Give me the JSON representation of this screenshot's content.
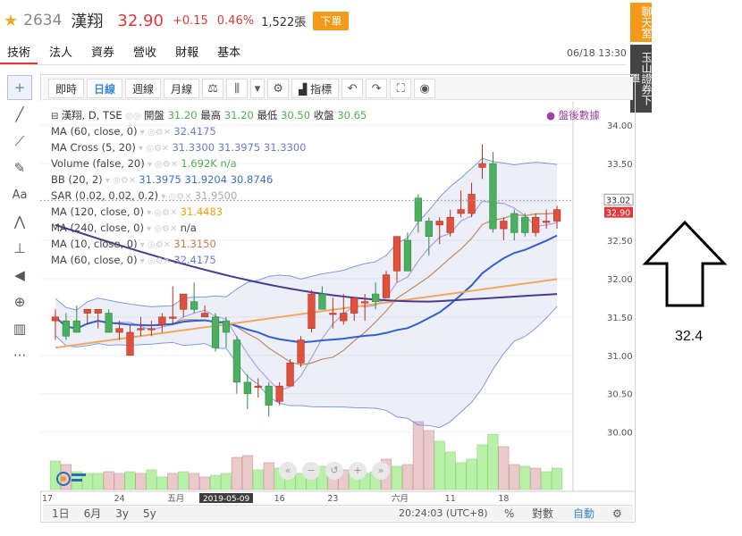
{
  "header": {
    "star_icon": "star-icon",
    "code": "2634",
    "name": "漢翔",
    "price": "32.90",
    "change": "+0.15",
    "change_pct": "0.46%",
    "volume": "1,522張",
    "order_button": "下單"
  },
  "side_buttons": {
    "chat": "聊天室",
    "trade": "玉山證券下單"
  },
  "tabs": [
    {
      "label": "技術",
      "active": true
    },
    {
      "label": "法人",
      "active": false
    },
    {
      "label": "資券",
      "active": false
    },
    {
      "label": "營收",
      "active": false
    },
    {
      "label": "財報",
      "active": false
    },
    {
      "label": "基本",
      "active": false
    }
  ],
  "datetime": "06/18 13:30",
  "toolbar": {
    "intraday": "即時",
    "daily": "日線",
    "weekly": "週線",
    "monthly": "月線",
    "indicators": "指標"
  },
  "legend": {
    "title": "漢翔, D, TSE",
    "open_label": "開盤",
    "open": "31.20",
    "high_label": "最高",
    "high": "31.20",
    "low_label": "最低",
    "low": "30.50",
    "close_label": "收盤",
    "close": "30.65",
    "after_hours": "盤後數據",
    "rows": [
      {
        "label": "MA (60, close, 0)",
        "value": "32.4175",
        "color": "#6c7ac9"
      },
      {
        "label": "MA Cross (5, 20)",
        "value": "31.3300  31.3975  31.3300",
        "color": "#6c7ac9"
      },
      {
        "label": "Volume (false, 20)",
        "value": "1.692K  n/a",
        "color": "#4caf50"
      },
      {
        "label": "BB (20, 2)",
        "value": "31.3975  31.9204  30.8746",
        "color": "#3a6fc8"
      },
      {
        "label": "SAR (0.02, 0.02, 0.2)",
        "value": "31.9500",
        "color": "#aaa"
      },
      {
        "label": "MA (120, close, 0)",
        "value": "31.4483",
        "color": "#f0a000"
      },
      {
        "label": "MA (240, close, 0)",
        "value": "n/a",
        "color": "#444"
      },
      {
        "label": "MA (10, close, 0)",
        "value": "31.3150",
        "color": "#c07a50"
      },
      {
        "label": "MA (60, close, 0)",
        "value": "32.4175",
        "color": "#6c7ac9"
      }
    ]
  },
  "price_axis": [
    "34.00",
    "33.50",
    "33.00",
    "32.50",
    "32.00",
    "31.50",
    "31.00",
    "30.50",
    "30.00"
  ],
  "price_tags": {
    "upper": "33.02",
    "current": "32.90"
  },
  "x_axis": [
    "17",
    "24",
    "五月",
    "2019-05-09",
    "16",
    "23",
    "六月",
    "11",
    "18"
  ],
  "bottom": {
    "ranges": [
      "1日",
      "6月",
      "3y",
      "5y"
    ],
    "clock": "20:24:03 (UTC+8)",
    "percent": "%",
    "log": "對數",
    "auto": "自動"
  },
  "annotation": {
    "price": "32.4"
  },
  "chart_data": {
    "type": "candlestick",
    "ylim": [
      29.6,
      34.2
    ],
    "candles": [
      {
        "o": 31.45,
        "h": 31.6,
        "l": 31.2,
        "c": 31.5
      },
      {
        "o": 31.45,
        "h": 31.55,
        "l": 31.2,
        "c": 31.25
      },
      {
        "o": 31.45,
        "h": 31.65,
        "l": 31.3,
        "c": 31.3
      },
      {
        "o": 31.55,
        "h": 31.6,
        "l": 31.4,
        "c": 31.6
      },
      {
        "o": 31.55,
        "h": 31.6,
        "l": 31.35,
        "c": 31.6
      },
      {
        "o": 31.55,
        "h": 31.6,
        "l": 31.3,
        "c": 31.3
      },
      {
        "o": 31.3,
        "h": 31.45,
        "l": 31.2,
        "c": 31.35
      },
      {
        "o": 31.0,
        "h": 31.4,
        "l": 31.0,
        "c": 31.3
      },
      {
        "o": 31.35,
        "h": 31.5,
        "l": 31.25,
        "c": 31.35
      },
      {
        "o": 31.35,
        "h": 31.45,
        "l": 31.25,
        "c": 31.35
      },
      {
        "o": 31.4,
        "h": 31.55,
        "l": 31.3,
        "c": 31.5
      },
      {
        "o": 31.5,
        "h": 31.9,
        "l": 31.4,
        "c": 31.5
      },
      {
        "o": 31.6,
        "h": 31.8,
        "l": 31.5,
        "c": 31.8
      },
      {
        "o": 31.7,
        "h": 31.95,
        "l": 31.55,
        "c": 31.6
      },
      {
        "o": 31.5,
        "h": 31.65,
        "l": 31.5,
        "c": 31.55
      },
      {
        "o": 31.5,
        "h": 31.55,
        "l": 31.05,
        "c": 31.1
      },
      {
        "o": 31.45,
        "h": 31.5,
        "l": 31.1,
        "c": 31.3
      },
      {
        "o": 31.2,
        "h": 31.25,
        "l": 30.5,
        "c": 30.65
      },
      {
        "o": 30.65,
        "h": 30.75,
        "l": 30.3,
        "c": 30.5
      },
      {
        "o": 30.6,
        "h": 30.7,
        "l": 30.45,
        "c": 30.6
      },
      {
        "o": 30.6,
        "h": 30.65,
        "l": 30.2,
        "c": 30.35
      },
      {
        "o": 30.4,
        "h": 30.65,
        "l": 30.35,
        "c": 30.6
      },
      {
        "o": 30.6,
        "h": 30.95,
        "l": 30.6,
        "c": 30.9
      },
      {
        "o": 30.9,
        "h": 31.25,
        "l": 30.85,
        "c": 31.2
      },
      {
        "o": 31.35,
        "h": 31.85,
        "l": 31.3,
        "c": 31.8
      },
      {
        "o": 31.8,
        "h": 31.9,
        "l": 31.6,
        "c": 31.6
      },
      {
        "o": 31.55,
        "h": 31.75,
        "l": 31.35,
        "c": 31.55
      },
      {
        "o": 31.45,
        "h": 31.8,
        "l": 31.4,
        "c": 31.55
      },
      {
        "o": 31.55,
        "h": 31.75,
        "l": 31.45,
        "c": 31.75
      },
      {
        "o": 31.7,
        "h": 31.8,
        "l": 31.45,
        "c": 31.7
      },
      {
        "o": 31.8,
        "h": 31.95,
        "l": 31.6,
        "c": 31.7
      },
      {
        "o": 31.75,
        "h": 32.1,
        "l": 31.75,
        "c": 32.05
      },
      {
        "o": 32.1,
        "h": 32.55,
        "l": 31.95,
        "c": 32.55
      },
      {
        "o": 32.5,
        "h": 32.6,
        "l": 32.1,
        "c": 32.1
      },
      {
        "o": 33.05,
        "h": 33.1,
        "l": 32.6,
        "c": 32.75
      },
      {
        "o": 32.75,
        "h": 32.8,
        "l": 32.3,
        "c": 32.55
      },
      {
        "o": 32.7,
        "h": 32.8,
        "l": 32.45,
        "c": 32.75
      },
      {
        "o": 32.6,
        "h": 32.9,
        "l": 32.55,
        "c": 32.8
      },
      {
        "o": 32.85,
        "h": 33.15,
        "l": 32.8,
        "c": 32.9
      },
      {
        "o": 32.85,
        "h": 33.25,
        "l": 32.8,
        "c": 33.1
      },
      {
        "o": 33.45,
        "h": 33.75,
        "l": 33.3,
        "c": 33.5
      },
      {
        "o": 33.5,
        "h": 33.65,
        "l": 32.6,
        "c": 32.65
      },
      {
        "o": 32.65,
        "h": 32.8,
        "l": 32.5,
        "c": 32.75
      },
      {
        "o": 32.85,
        "h": 32.9,
        "l": 32.5,
        "c": 32.6
      },
      {
        "o": 32.8,
        "h": 32.85,
        "l": 32.55,
        "c": 32.6
      },
      {
        "o": 32.6,
        "h": 32.85,
        "l": 32.55,
        "c": 32.8
      },
      {
        "o": 32.75,
        "h": 32.9,
        "l": 32.65,
        "c": 32.75
      },
      {
        "o": 32.75,
        "h": 32.95,
        "l": 32.65,
        "c": 32.9
      }
    ],
    "volume": [
      0.8,
      0.7,
      0.5,
      0.45,
      0.45,
      0.5,
      0.45,
      0.5,
      0.45,
      0.55,
      0.35,
      0.45,
      0.5,
      0.45,
      0.35,
      0.4,
      0.45,
      0.9,
      0.95,
      0.55,
      0.75,
      0.6,
      0.5,
      0.45,
      0.55,
      0.65,
      0.7,
      0.55,
      0.55,
      0.45,
      0.5,
      0.85,
      0.65,
      0.7,
      1.9,
      1.65,
      1.35,
      1.05,
      0.75,
      0.85,
      1.25,
      1.55,
      1.2,
      0.7,
      0.65,
      0.6,
      0.5,
      0.6
    ],
    "volume_up": [
      true,
      false,
      true,
      true,
      true,
      false,
      false,
      true,
      false,
      true,
      true,
      false,
      true,
      false,
      false,
      true,
      true,
      false,
      false,
      true,
      false,
      true,
      true,
      true,
      true,
      true,
      false,
      false,
      true,
      true,
      true,
      false,
      true,
      false,
      false,
      false,
      true,
      true,
      true,
      true,
      true,
      true,
      false,
      false,
      true,
      false,
      true,
      true
    ],
    "price_tags": [
      33.02,
      32.9
    ]
  }
}
